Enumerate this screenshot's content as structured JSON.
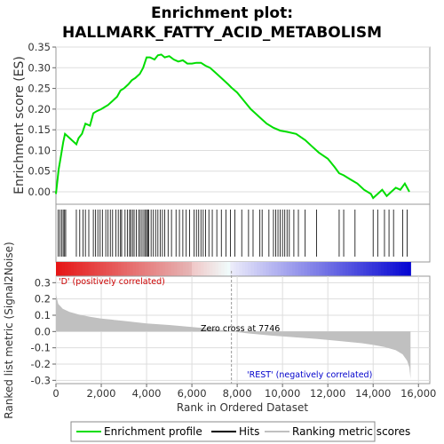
{
  "title_line1": "Enrichment plot:",
  "title_line2": "HALLMARK_FATTY_ACID_METABOLISM",
  "colors": {
    "profile": "#00dd00",
    "hits": "#000000",
    "metric_fill": "#c0c0c0",
    "grid": "#dddddd",
    "pos_label": "#cc0000",
    "neg_label": "#0000cc",
    "zero_line": "#999999"
  },
  "chart_data": [
    {
      "name": "enrichment-profile",
      "type": "line",
      "ylabel": "Enrichment score (ES)",
      "ylim": [
        -0.03,
        0.35
      ],
      "yticks": [
        "0.00",
        "0.05",
        "0.10",
        "0.15",
        "0.20",
        "0.25",
        "0.30",
        "0.35"
      ],
      "ytick_values": [
        0,
        0.05,
        0.1,
        0.15,
        0.2,
        0.25,
        0.3,
        0.35
      ],
      "xlim": [
        0,
        16500
      ],
      "grid": true,
      "series": [
        {
          "name": "Enrichment profile",
          "x": [
            0,
            120,
            200,
            320,
            400,
            500,
            900,
            1000,
            1150,
            1300,
            1500,
            1650,
            1800,
            2000,
            2150,
            2300,
            2500,
            2700,
            2850,
            3000,
            3200,
            3350,
            3500,
            3700,
            3850,
            4000,
            4150,
            4350,
            4500,
            4650,
            4800,
            5000,
            5200,
            5400,
            5600,
            5800,
            6000,
            6200,
            6400,
            6600,
            6800,
            7000,
            7300,
            7600,
            7746,
            8000,
            8300,
            8600,
            9000,
            9300,
            9600,
            9900,
            10200,
            10600,
            11000,
            11300,
            11600,
            12000,
            12300,
            12500,
            12700,
            13000,
            13300,
            13600,
            13900,
            14000,
            14200,
            14400,
            14600,
            14800,
            15000,
            15200,
            15400,
            15600
          ],
          "y": [
            -0.005,
            0.055,
            0.08,
            0.12,
            0.14,
            0.135,
            0.115,
            0.13,
            0.14,
            0.165,
            0.16,
            0.19,
            0.195,
            0.2,
            0.205,
            0.21,
            0.22,
            0.23,
            0.245,
            0.25,
            0.26,
            0.27,
            0.275,
            0.285,
            0.3,
            0.325,
            0.325,
            0.32,
            0.33,
            0.332,
            0.325,
            0.328,
            0.32,
            0.315,
            0.318,
            0.31,
            0.31,
            0.312,
            0.312,
            0.305,
            0.3,
            0.29,
            0.275,
            0.26,
            0.252,
            0.24,
            0.22,
            0.2,
            0.18,
            0.165,
            0.155,
            0.148,
            0.145,
            0.14,
            0.125,
            0.11,
            0.095,
            0.08,
            0.06,
            0.045,
            0.04,
            0.03,
            0.02,
            0.005,
            -0.005,
            -0.015,
            -0.005,
            0.005,
            -0.01,
            0.0,
            0.01,
            0.005,
            0.02,
            0.0
          ]
        }
      ]
    },
    {
      "name": "hits",
      "type": "scatter",
      "hit_ranks": [
        100,
        180,
        260,
        320,
        380,
        430,
        900,
        1050,
        1200,
        1300,
        1450,
        1650,
        1750,
        1850,
        1950,
        2050,
        2200,
        2300,
        2400,
        2500,
        2650,
        2750,
        2850,
        2900,
        3050,
        3150,
        3250,
        3300,
        3380,
        3450,
        3550,
        3650,
        3720,
        3800,
        3880,
        3950,
        4000,
        4050,
        4100,
        4200,
        4300,
        4400,
        4500,
        4600,
        4700,
        4800,
        4950,
        5100,
        5300,
        5450,
        5600,
        5750,
        5900,
        6100,
        6200,
        6300,
        6400,
        6500,
        6600,
        6750,
        6900,
        7100,
        7300,
        7500,
        7700,
        7900,
        8200,
        8500,
        8700,
        9000,
        9100,
        9400,
        9600,
        9700,
        9800,
        9900,
        10000,
        10100,
        10200,
        10300,
        10500,
        10700,
        11000,
        11500,
        12500,
        12700,
        13200,
        14000,
        14200,
        14500,
        14700,
        14900,
        15300,
        15500
      ]
    },
    {
      "name": "ranked-list-metric",
      "type": "area",
      "ylabel": "Ranked list metric (Signal2Noise)",
      "xlabel": "Rank in Ordered Dataset",
      "ylim": [
        -0.32,
        0.34
      ],
      "yticks": [
        "-0.3",
        "-0.2",
        "-0.1",
        "0.0",
        "0.1",
        "0.2",
        "0.3"
      ],
      "ytick_values": [
        -0.3,
        -0.2,
        -0.1,
        0.0,
        0.1,
        0.2,
        0.3
      ],
      "xlim": [
        0,
        16500
      ],
      "xticks": [
        "0",
        "2,000",
        "4,000",
        "6,000",
        "8,000",
        "10,000",
        "12,000",
        "14,000",
        "16,000"
      ],
      "xtick_values": [
        0,
        2000,
        4000,
        6000,
        8000,
        10000,
        12000,
        14000,
        16000
      ],
      "zero_cross_label": "Zero cross at 7746",
      "zero_cross_rank": 7746,
      "pos_label": "'D' (positively correlated)",
      "neg_label": "'REST' (negatively correlated)",
      "x": [
        0,
        100,
        300,
        600,
        1000,
        1500,
        2000,
        3000,
        4000,
        5000,
        6000,
        7000,
        7746,
        8500,
        9500,
        10500,
        11500,
        12500,
        13500,
        14000,
        14500,
        15000,
        15300,
        15500,
        15600,
        15650
      ],
      "values": [
        0.23,
        0.17,
        0.14,
        0.12,
        0.105,
        0.09,
        0.08,
        0.065,
        0.05,
        0.04,
        0.028,
        0.015,
        0.0,
        -0.012,
        -0.025,
        -0.035,
        -0.045,
        -0.058,
        -0.072,
        -0.082,
        -0.095,
        -0.115,
        -0.14,
        -0.18,
        -0.22,
        -0.29
      ]
    }
  ],
  "legend": {
    "items": [
      {
        "label": "Enrichment profile",
        "color": "#00dd00"
      },
      {
        "label": "Hits",
        "color": "#000000"
      },
      {
        "label": "Ranking metric scores",
        "color": "#c0c0c0"
      }
    ]
  }
}
